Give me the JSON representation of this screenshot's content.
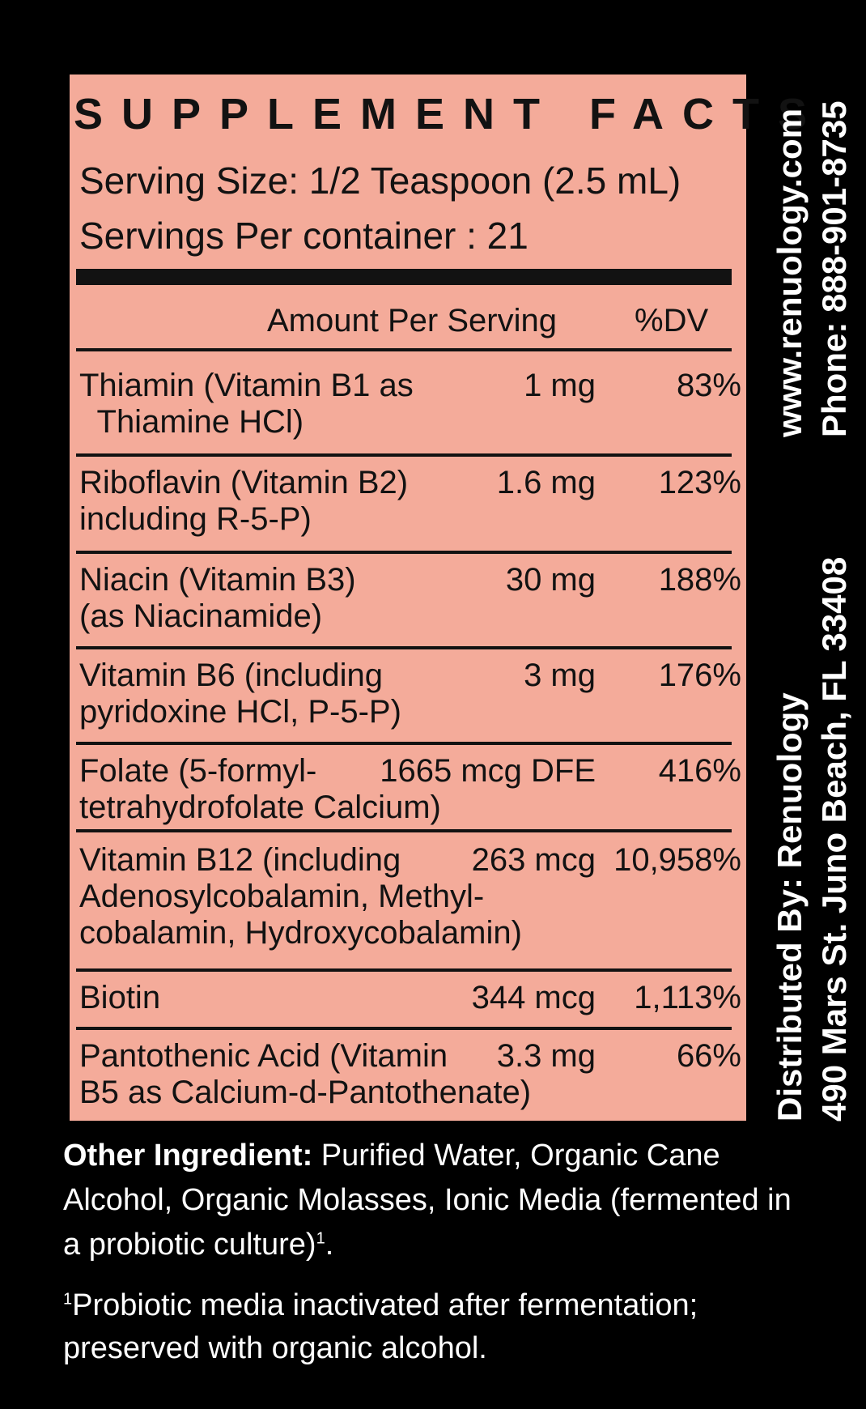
{
  "label": {
    "title": "SUPPLEMENT FACTS",
    "serving_size": "Serving Size: 1/2 Teaspoon (2.5 mL)",
    "servings_per_container": "Servings Per container : 21",
    "col_amount": "Amount Per Serving",
    "col_dv": "%DV",
    "rows": [
      {
        "name": "Thiamin (Vitamin B1 as\n  Thiamine HCl)",
        "amount": "1 mg",
        "dv": "83%"
      },
      {
        "name": "Riboflavin (Vitamin B2)\nincluding R-5-P)",
        "amount": "1.6 mg",
        "dv": "123%"
      },
      {
        "name": "Niacin (Vitamin B3)\n(as Niacinamide)",
        "amount": "30 mg",
        "dv": "188%"
      },
      {
        "name": "Vitamin B6 (including\npyridoxine HCl, P-5-P)",
        "amount": "3 mg",
        "dv": "176%"
      },
      {
        "name": "Folate (5-formyl-\ntetrahydrofolate Calcium)",
        "amount": "1665 mcg DFE",
        "dv": "416%"
      },
      {
        "name": "Vitamin B12 (including\nAdenosylcobalamin, Methyl-\ncobalamin, Hydroxycobalamin)",
        "amount": "263 mcg",
        "dv": "10,958%"
      },
      {
        "name": "Biotin",
        "amount": "344 mcg",
        "dv": "1,113%"
      },
      {
        "name": "Pantothenic Acid (Vitamin\nB5 as Calcium-d-Pantothenate)",
        "amount": "3.3 mg",
        "dv": "66%"
      }
    ]
  },
  "other_ingredients": {
    "heading": "Other Ingredient:",
    "text": " Purified Water, Organic Cane Alcohol, Organic Molasses, Ionic Media (fermented in a probiotic culture)",
    "sup": "1",
    "end": "."
  },
  "footnote": {
    "sup": "1",
    "text": "Probiotic media inactivated after fermentation; preserved with organic alcohol."
  },
  "side": {
    "website": "www.renuology.com",
    "phone": "Phone: 888-901-8735",
    "distributed_by": "Distributed By: Renuology",
    "address": "490 Mars St. Juno Beach, FL 33408"
  },
  "colors": {
    "panel": "#f4ab9a",
    "background": "#000000",
    "text_dark": "#121212",
    "text_light": "#ffffff"
  }
}
